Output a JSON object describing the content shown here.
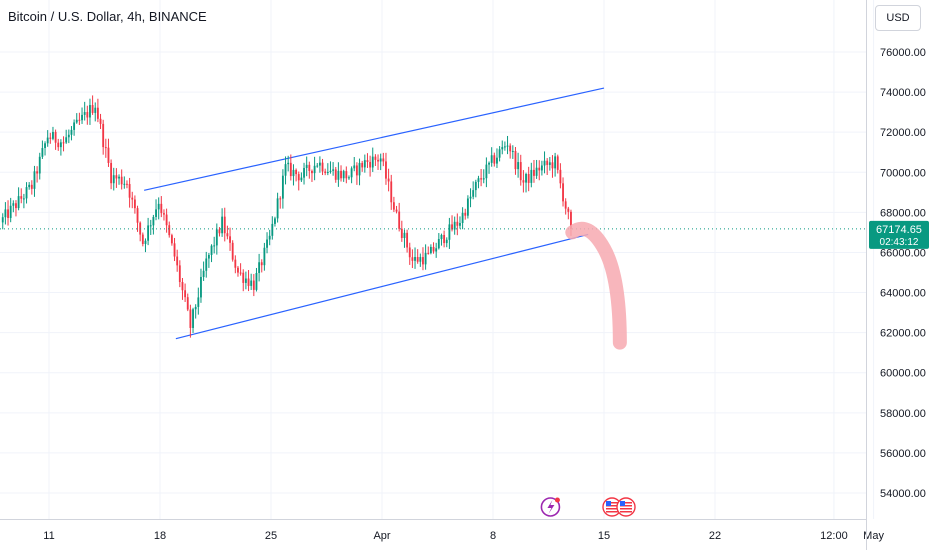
{
  "header": {
    "symbol_title": "Bitcoin / U.S. Dollar, 4h, BINANCE",
    "currency": "USD"
  },
  "price_label": {
    "value": "67174.65",
    "countdown": "02:43:12",
    "color": "#089981"
  },
  "colors": {
    "up": "#089981",
    "down": "#f23645",
    "trendline": "#2962ff",
    "arrow": "#f7a9b0"
  },
  "icons": [
    "lightning-icon",
    "us-flag-icon"
  ],
  "chart_data": {
    "type": "candlestick",
    "interval": "4h",
    "ylim": [
      52500,
      78000
    ],
    "x_range": [
      "2024-03-08",
      "2024-05-02"
    ],
    "y_ticks": [
      "76000.00",
      "74000.00",
      "72000.00",
      "70000.00",
      "68000.00",
      "66000.00",
      "64000.00",
      "62000.00",
      "60000.00",
      "58000.00",
      "56000.00",
      "54000.00"
    ],
    "x_ticks": [
      {
        "label": "11",
        "date": "2024-03-11"
      },
      {
        "label": "18",
        "date": "2024-03-18"
      },
      {
        "label": "25",
        "date": "2024-03-25"
      },
      {
        "label": "Apr",
        "date": "2024-04-01"
      },
      {
        "label": "8",
        "date": "2024-04-08"
      },
      {
        "label": "15",
        "date": "2024-04-15"
      },
      {
        "label": "22",
        "date": "2024-04-22"
      },
      {
        "label": "12:00",
        "date": "2024-04-29T12:00"
      },
      {
        "label": "May",
        "date": "2024-05-02"
      }
    ],
    "anchors": [
      {
        "date": "2024-03-08",
        "price": 67500
      },
      {
        "date": "2024-03-09",
        "price": 68400
      },
      {
        "date": "2024-03-10",
        "price": 69300
      },
      {
        "date": "2024-03-11",
        "price": 71800
      },
      {
        "date": "2024-03-12",
        "price": 71500
      },
      {
        "date": "2024-03-13",
        "price": 72500
      },
      {
        "date": "2024-03-14",
        "price": 73400
      },
      {
        "date": "2024-03-15",
        "price": 69800
      },
      {
        "date": "2024-03-16",
        "price": 69500
      },
      {
        "date": "2024-03-17",
        "price": 66500
      },
      {
        "date": "2024-03-18",
        "price": 68600
      },
      {
        "date": "2024-03-19",
        "price": 65800
      },
      {
        "date": "2024-03-20",
        "price": 62300
      },
      {
        "date": "2024-03-21",
        "price": 65500
      },
      {
        "date": "2024-03-22",
        "price": 67500
      },
      {
        "date": "2024-03-23",
        "price": 65000
      },
      {
        "date": "2024-03-24",
        "price": 64400
      },
      {
        "date": "2024-03-25",
        "price": 66700
      },
      {
        "date": "2024-03-26",
        "price": 70200
      },
      {
        "date": "2024-03-27",
        "price": 69800
      },
      {
        "date": "2024-03-28",
        "price": 70500
      },
      {
        "date": "2024-03-29",
        "price": 70000
      },
      {
        "date": "2024-03-30",
        "price": 69800
      },
      {
        "date": "2024-03-31",
        "price": 70500
      },
      {
        "date": "2024-04-01",
        "price": 70700
      },
      {
        "date": "2024-04-02",
        "price": 67800
      },
      {
        "date": "2024-04-03",
        "price": 65600
      },
      {
        "date": "2024-04-04",
        "price": 65800
      },
      {
        "date": "2024-04-05",
        "price": 66800
      },
      {
        "date": "2024-04-06",
        "price": 67600
      },
      {
        "date": "2024-04-07",
        "price": 69300
      },
      {
        "date": "2024-04-08",
        "price": 70500
      },
      {
        "date": "2024-04-09",
        "price": 71500
      },
      {
        "date": "2024-04-10",
        "price": 69500
      },
      {
        "date": "2024-04-11",
        "price": 70200
      },
      {
        "date": "2024-04-12",
        "price": 70500
      },
      {
        "date": "2024-04-13",
        "price": 67174.65
      }
    ],
    "trendlines": [
      {
        "name": "upper",
        "from": {
          "date": "2024-03-17",
          "price": 69100
        },
        "to": {
          "date": "2024-04-15",
          "price": 74200
        }
      },
      {
        "name": "lower",
        "from": {
          "date": "2024-03-19",
          "price": 61700
        },
        "to": {
          "date": "2024-04-14",
          "price": 66900
        }
      }
    ],
    "projection": [
      {
        "date": "2024-04-13",
        "price": 67000
      },
      {
        "date": "2024-04-14",
        "price": 67600
      },
      {
        "date": "2024-04-15",
        "price": 66200
      },
      {
        "date": "2024-04-16",
        "price": 61500
      }
    ],
    "last_price": 67174.65,
    "grid": true
  }
}
